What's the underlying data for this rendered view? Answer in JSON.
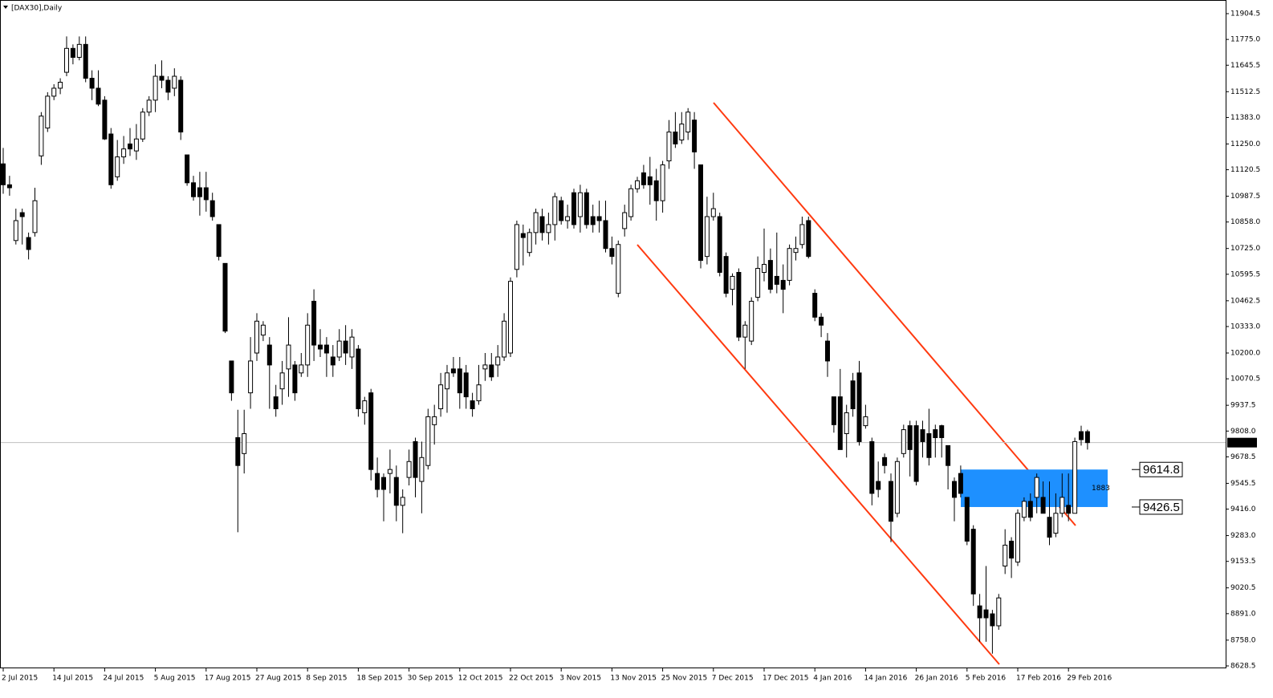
{
  "chart_data": {
    "type": "candlestick",
    "title": "[DAX30],Daily",
    "ylim": [
      8628.5,
      11904.5
    ],
    "yticks": [
      11904.5,
      {
        "value": 11775,
        "label": "11775.0"
      },
      11645.5,
      11512.5,
      {
        "value": 11383,
        "label": "11383.0"
      },
      {
        "value": 11250,
        "label": "11250.0"
      },
      11120.5,
      10987.5,
      {
        "value": 10858,
        "label": "10858.0"
      },
      {
        "value": 10725,
        "label": "10725.0"
      },
      10595.5,
      10462.5,
      {
        "value": 10333,
        "label": "10333.0"
      },
      {
        "value": 10200,
        "label": "10200.0"
      },
      10070.5,
      9937.5,
      {
        "value": 9808,
        "label": "9808.0"
      },
      9678.5,
      9545.5,
      {
        "value": 9416,
        "label": "9416.0"
      },
      {
        "value": 9283,
        "label": "9283.0"
      },
      9153.5,
      9020.5,
      {
        "value": 8891,
        "label": "8891.0"
      },
      {
        "value": 8758,
        "label": "8758.0"
      },
      8628.5
    ],
    "categories": [
      "2 Jul 2015",
      null,
      null,
      null,
      null,
      null,
      null,
      null,
      "14 Jul 2015",
      null,
      null,
      null,
      null,
      null,
      null,
      null,
      "24 Jul 2015",
      null,
      null,
      null,
      null,
      null,
      null,
      null,
      "5 Aug 2015",
      null,
      null,
      null,
      null,
      null,
      null,
      null,
      "17 Aug 2015",
      null,
      null,
      null,
      null,
      null,
      null,
      null,
      "27 Aug 2015",
      null,
      null,
      null,
      null,
      null,
      null,
      null,
      "8 Sep 2015",
      null,
      null,
      null,
      null,
      null,
      null,
      null,
      "18 Sep 2015",
      null,
      null,
      null,
      null,
      null,
      null,
      null,
      "30 Sep 2015",
      null,
      null,
      null,
      null,
      null,
      null,
      null,
      "12 Oct 2015",
      null,
      null,
      null,
      null,
      null,
      null,
      null,
      "22 Oct 2015",
      null,
      null,
      null,
      null,
      null,
      null,
      null,
      "3 Nov 2015",
      null,
      null,
      null,
      null,
      null,
      null,
      null,
      "13 Nov 2015",
      null,
      null,
      null,
      null,
      null,
      null,
      null,
      "25 Nov 2015",
      null,
      null,
      null,
      null,
      null,
      null,
      null,
      "7 Dec 2015",
      null,
      null,
      null,
      null,
      null,
      null,
      null,
      "17 Dec 2015",
      null,
      null,
      null,
      null,
      null,
      null,
      null,
      "4 Jan 2016",
      null,
      null,
      null,
      null,
      null,
      null,
      null,
      "14 Jan 2016",
      null,
      null,
      null,
      null,
      null,
      null,
      null,
      "26 Jan 2016",
      null,
      null,
      null,
      null,
      null,
      null,
      null,
      "5 Feb 2016",
      null,
      null,
      null,
      null,
      null,
      null,
      null,
      "17 Feb 2016",
      null,
      null,
      null,
      null,
      null,
      null,
      null,
      "29 Feb 2016",
      null,
      null,
      null
    ],
    "candles": [
      [
        11150,
        11230,
        11000,
        11045
      ],
      [
        11045,
        11090,
        10990,
        11030
      ],
      [
        10765,
        10925,
        10745,
        10865
      ],
      [
        10905,
        10925,
        10745,
        10885
      ],
      [
        10780,
        10805,
        10670,
        10720
      ],
      [
        10805,
        11030,
        10785,
        10965
      ],
      [
        11190,
        11410,
        11145,
        11390
      ],
      [
        11330,
        11510,
        11310,
        11490
      ],
      [
        11490,
        11550,
        11470,
        11530
      ],
      [
        11530,
        11580,
        11500,
        11560
      ],
      [
        11610,
        11790,
        11590,
        11730
      ],
      [
        11730,
        11750,
        11650,
        11685
      ],
      [
        11685,
        11790,
        11670,
        11750
      ],
      [
        11750,
        11790,
        11560,
        11580
      ],
      [
        11580,
        11620,
        11470,
        11530
      ],
      [
        11530,
        11620,
        11440,
        11450
      ],
      [
        11470,
        11490,
        11270,
        11275
      ],
      [
        11300,
        11330,
        11025,
        11045
      ],
      [
        11085,
        11270,
        11065,
        11185
      ],
      [
        11185,
        11290,
        11150,
        11225
      ],
      [
        11250,
        11330,
        11190,
        11225
      ],
      [
        11215,
        11350,
        11170,
        11275
      ],
      [
        11275,
        11430,
        11260,
        11410
      ],
      [
        11410,
        11490,
        11390,
        11470
      ],
      [
        11470,
        11650,
        11410,
        11590
      ],
      [
        11590,
        11670,
        11530,
        11570
      ],
      [
        11570,
        11590,
        11470,
        11510
      ],
      [
        11530,
        11630,
        11490,
        11590
      ],
      [
        11570,
        11590,
        11270,
        11310
      ],
      [
        11195,
        11195,
        11040,
        11055
      ],
      [
        11055,
        11090,
        10965,
        10985
      ],
      [
        11030,
        11110,
        10890,
        10985
      ],
      [
        11030,
        11110,
        10910,
        10970
      ],
      [
        10965,
        11005,
        10865,
        10885
      ],
      [
        10845,
        10845,
        10665,
        10685
      ],
      [
        10650,
        10650,
        10300,
        10310
      ],
      [
        10160,
        10160,
        9960,
        10000
      ],
      [
        9775,
        9915,
        9300,
        9635
      ],
      [
        9695,
        9915,
        9595,
        9795
      ],
      [
        10000,
        10280,
        9920,
        10160
      ],
      [
        10200,
        10400,
        10160,
        10360
      ],
      [
        10290,
        10360,
        10260,
        10340
      ],
      [
        10240,
        10280,
        9920,
        10140
      ],
      [
        9980,
        10040,
        9880,
        9920
      ],
      [
        10020,
        10160,
        9940,
        10100
      ],
      [
        10120,
        10380,
        9980,
        10240
      ],
      [
        10140,
        10160,
        9960,
        10000
      ],
      [
        10100,
        10200,
        10080,
        10140
      ],
      [
        10140,
        10400,
        10080,
        10340
      ],
      [
        10460,
        10520,
        10160,
        10240
      ],
      [
        10240,
        10320,
        10180,
        10220
      ],
      [
        10240,
        10280,
        10080,
        10200
      ],
      [
        10180,
        10240,
        10080,
        10140
      ],
      [
        10180,
        10320,
        10160,
        10260
      ],
      [
        10260,
        10340,
        10140,
        10200
      ],
      [
        10180,
        10320,
        10120,
        10280
      ],
      [
        10220,
        10240,
        9880,
        9920
      ],
      [
        9900,
        9980,
        9840,
        9960
      ],
      [
        10000,
        10020,
        9560,
        9615
      ],
      [
        9595,
        9675,
        9475,
        9515
      ],
      [
        9575,
        9595,
        9355,
        9515
      ],
      [
        9595,
        9715,
        9495,
        9615
      ],
      [
        9575,
        9635,
        9355,
        9435
      ],
      [
        9435,
        9515,
        9295,
        9475
      ],
      [
        9575,
        9715,
        9535,
        9655
      ],
      [
        9755,
        9775,
        9475,
        9575
      ],
      [
        9555,
        9755,
        9395,
        9675
      ],
      [
        9635,
        9920,
        9615,
        9880
      ],
      [
        9840,
        9940,
        9740,
        9880
      ],
      [
        9920,
        10100,
        9880,
        10040
      ],
      [
        10020,
        10140,
        9900,
        10100
      ],
      [
        10120,
        10180,
        10080,
        10100
      ],
      [
        10120,
        10180,
        9920,
        10000
      ],
      [
        10100,
        10140,
        9920,
        9980
      ],
      [
        9960,
        10000,
        9880,
        9920
      ],
      [
        9960,
        10140,
        9940,
        10040
      ],
      [
        10120,
        10200,
        10060,
        10140
      ],
      [
        10140,
        10200,
        10060,
        10080
      ],
      [
        10140,
        10240,
        10080,
        10180
      ],
      [
        10180,
        10400,
        10160,
        10360
      ],
      [
        10200,
        10580,
        10180,
        10560
      ],
      [
        10620,
        10865,
        10580,
        10845
      ],
      [
        10800,
        10845,
        10640,
        10780
      ],
      [
        10705,
        10825,
        10685,
        10805
      ],
      [
        10805,
        10925,
        10745,
        10905
      ],
      [
        10885,
        10925,
        10765,
        10805
      ],
      [
        10805,
        10905,
        10745,
        10845
      ],
      [
        10845,
        11005,
        10765,
        10985
      ],
      [
        10965,
        10985,
        10845,
        10865
      ],
      [
        10865,
        10945,
        10825,
        10885
      ],
      [
        11005,
        11025,
        10825,
        10845
      ],
      [
        10885,
        11045,
        10805,
        11005
      ],
      [
        11005,
        11025,
        10825,
        10845
      ],
      [
        10885,
        10945,
        10805,
        10845
      ],
      [
        10885,
        10965,
        10805,
        10865
      ],
      [
        10865,
        10965,
        10705,
        10725
      ],
      [
        10725,
        10785,
        10645,
        10685
      ],
      [
        10500,
        10765,
        10480,
        10745
      ],
      [
        10825,
        10945,
        10785,
        10905
      ],
      [
        10885,
        11045,
        10865,
        11025
      ],
      [
        11025,
        11085,
        11005,
        11065
      ],
      [
        11105,
        11145,
        11025,
        11045
      ],
      [
        11085,
        11185,
        10945,
        11045
      ],
      [
        11065,
        11125,
        10865,
        10965
      ],
      [
        10965,
        11165,
        10905,
        11145
      ],
      [
        11165,
        11370,
        11125,
        11310
      ],
      [
        11310,
        11410,
        11230,
        11250
      ],
      [
        11270,
        11410,
        11250,
        11350
      ],
      [
        11310,
        11430,
        11270,
        11410
      ],
      [
        11370,
        11410,
        11125,
        11210
      ],
      [
        11145,
        11145,
        10625,
        10665
      ],
      [
        10685,
        10985,
        10645,
        10885
      ],
      [
        10885,
        11005,
        10865,
        10925
      ],
      [
        10885,
        10905,
        10585,
        10605
      ],
      [
        10685,
        10705,
        10480,
        10500
      ],
      [
        10520,
        10600,
        10440,
        10585
      ],
      [
        10605,
        10625,
        10260,
        10280
      ],
      [
        10280,
        10360,
        10120,
        10340
      ],
      [
        10260,
        10480,
        10240,
        10460
      ],
      [
        10480,
        10685,
        10460,
        10625
      ],
      [
        10605,
        10825,
        10560,
        10645
      ],
      [
        10665,
        10725,
        10500,
        10520
      ],
      [
        10585,
        10805,
        10500,
        10545
      ],
      [
        10565,
        10645,
        10400,
        10520
      ],
      [
        10565,
        10745,
        10540,
        10725
      ],
      [
        10705,
        10785,
        10665,
        10725
      ],
      [
        10745,
        10885,
        10725,
        10845
      ],
      [
        10865,
        10885,
        10675,
        10685
      ],
      [
        10500,
        10520,
        10360,
        10380
      ],
      [
        10380,
        10400,
        10280,
        10340
      ],
      [
        10260,
        10300,
        10080,
        10160
      ],
      [
        9980,
        9980,
        9800,
        9840
      ],
      [
        9980,
        10120,
        9715,
        9715
      ],
      [
        9795,
        9940,
        9675,
        9900
      ],
      [
        10060,
        10100,
        9880,
        9920
      ],
      [
        10100,
        10160,
        9735,
        9755
      ],
      [
        9835,
        9940,
        9820,
        9880
      ],
      [
        9755,
        9775,
        9435,
        9495
      ],
      [
        9555,
        9655,
        9475,
        9515
      ],
      [
        9675,
        9695,
        9595,
        9635
      ],
      [
        9555,
        9595,
        9250,
        9355
      ],
      [
        9395,
        9675,
        9375,
        9655
      ],
      [
        9695,
        9840,
        9675,
        9815
      ],
      [
        9835,
        9860,
        9580,
        9715
      ],
      [
        9835,
        9860,
        9535,
        9555
      ],
      [
        9815,
        9860,
        9675,
        9755
      ],
      [
        9795,
        9920,
        9635,
        9675
      ],
      [
        9815,
        9840,
        9675,
        9775
      ],
      [
        9835,
        9840,
        9675,
        9775
      ],
      [
        9735,
        9735,
        9515,
        9635
      ],
      [
        9555,
        9575,
        9355,
        9475
      ],
      [
        9595,
        9635,
        9475,
        9495
      ],
      [
        9475,
        9475,
        9235,
        9255
      ],
      [
        9315,
        9335,
        8930,
        8990
      ],
      [
        8930,
        8990,
        8750,
        8870
      ],
      [
        8910,
        9130,
        8750,
        8870
      ],
      [
        8890,
        8910,
        8690,
        8830
      ],
      [
        8830,
        8990,
        8810,
        8970
      ],
      [
        9130,
        9315,
        9090,
        9235
      ],
      [
        9255,
        9275,
        9070,
        9170
      ],
      [
        9150,
        9415,
        9130,
        9395
      ],
      [
        9375,
        9475,
        9355,
        9455
      ],
      [
        9455,
        9495,
        9355,
        9375
      ],
      [
        9475,
        9595,
        9395,
        9575
      ],
      [
        9475,
        9555,
        9395,
        9395
      ],
      [
        9375,
        9555,
        9235,
        9275
      ],
      [
        9295,
        9495,
        9275,
        9395
      ],
      [
        9395,
        9595,
        9375,
        9475
      ],
      [
        9435,
        9595,
        9355,
        9395
      ],
      [
        9395,
        9775,
        9395,
        9755
      ],
      [
        9805,
        9835,
        9735,
        9765
      ],
      [
        9805,
        9815,
        9715,
        9750
      ]
    ],
    "last_price": {
      "value": 9750,
      "label": "9750.0"
    },
    "zone": {
      "high": 9614.8,
      "low": 9426.5,
      "size": 1883
    },
    "zone_color": "#1e90ff",
    "bull_color": "#ffffff",
    "bear_color": "#000000"
  }
}
